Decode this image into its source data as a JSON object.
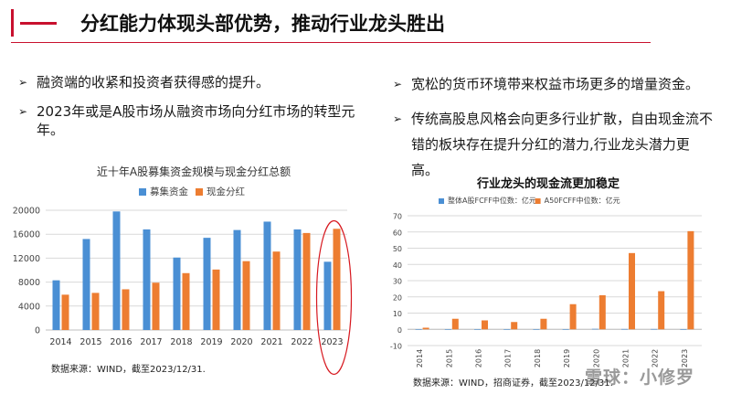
{
  "header": {
    "marker": "一",
    "title": "分红能力体现头部优势，推动行业龙头胜出"
  },
  "bullets_left": [
    "融资端的收紧和投资者获得感的提升。",
    "2023年或是A股市场从融资市场向分红市场的转型元年。"
  ],
  "bullets_right": [
    "宽松的货币环境带来权益市场更多的增量资金。",
    "传统高股息风格会向更多行业扩散，自由现金流不错的板块存在提升分红的潜力,行业龙头潜力更高。"
  ],
  "bullet_arrow": "➢",
  "watermark": "雪球：小修罗",
  "colors": {
    "blue": "#4a8fd4",
    "orange": "#ed7d31",
    "accent": "#c8102e"
  },
  "chart_data": [
    {
      "type": "bar",
      "title": "近十年A股募集资金规模与现金分红总额",
      "source": "数据来源：WIND，截至2023/12/31.",
      "categories": [
        "2014",
        "2015",
        "2016",
        "2017",
        "2018",
        "2019",
        "2020",
        "2021",
        "2022",
        "2023"
      ],
      "series": [
        {
          "name": "募集资金",
          "color": "#4a8fd4",
          "values": [
            8300,
            15200,
            19800,
            16800,
            12100,
            15400,
            16700,
            18100,
            16800,
            11400
          ]
        },
        {
          "name": "现金分红",
          "color": "#ed7d31",
          "values": [
            5900,
            6200,
            6800,
            7900,
            9500,
            10100,
            11500,
            13100,
            16200,
            16900
          ]
        }
      ],
      "ylim": [
        0,
        20000
      ],
      "yticks": [
        0,
        4000,
        8000,
        12000,
        16000,
        20000
      ],
      "legend": "top",
      "grid": true,
      "highlight": "2023"
    },
    {
      "type": "bar",
      "title": "行业龙头的现金流更加稳定",
      "source": "数据来源：WIND，招商证券，截至2023/12/31.",
      "categories": [
        "2014",
        "2015",
        "2016",
        "2017",
        "2018",
        "2019",
        "2020",
        "2021",
        "2022",
        "2023"
      ],
      "series": [
        {
          "name": "整体A股FCFF中位数：亿元",
          "color": "#4a8fd4",
          "values": [
            0.1,
            0.1,
            0.1,
            0.1,
            0.1,
            0.1,
            0.3,
            0.2,
            0.2,
            0.1
          ]
        },
        {
          "name": "A50FCFF中位数：亿元",
          "color": "#ed7d31",
          "values": [
            1,
            6.5,
            5.5,
            4.5,
            6.5,
            15.5,
            21,
            47,
            23.5,
            60.5
          ]
        }
      ],
      "ylim": [
        -10,
        70
      ],
      "yticks": [
        -10,
        0,
        10,
        20,
        30,
        40,
        50,
        60,
        70
      ],
      "legend": "top",
      "grid": true
    }
  ]
}
